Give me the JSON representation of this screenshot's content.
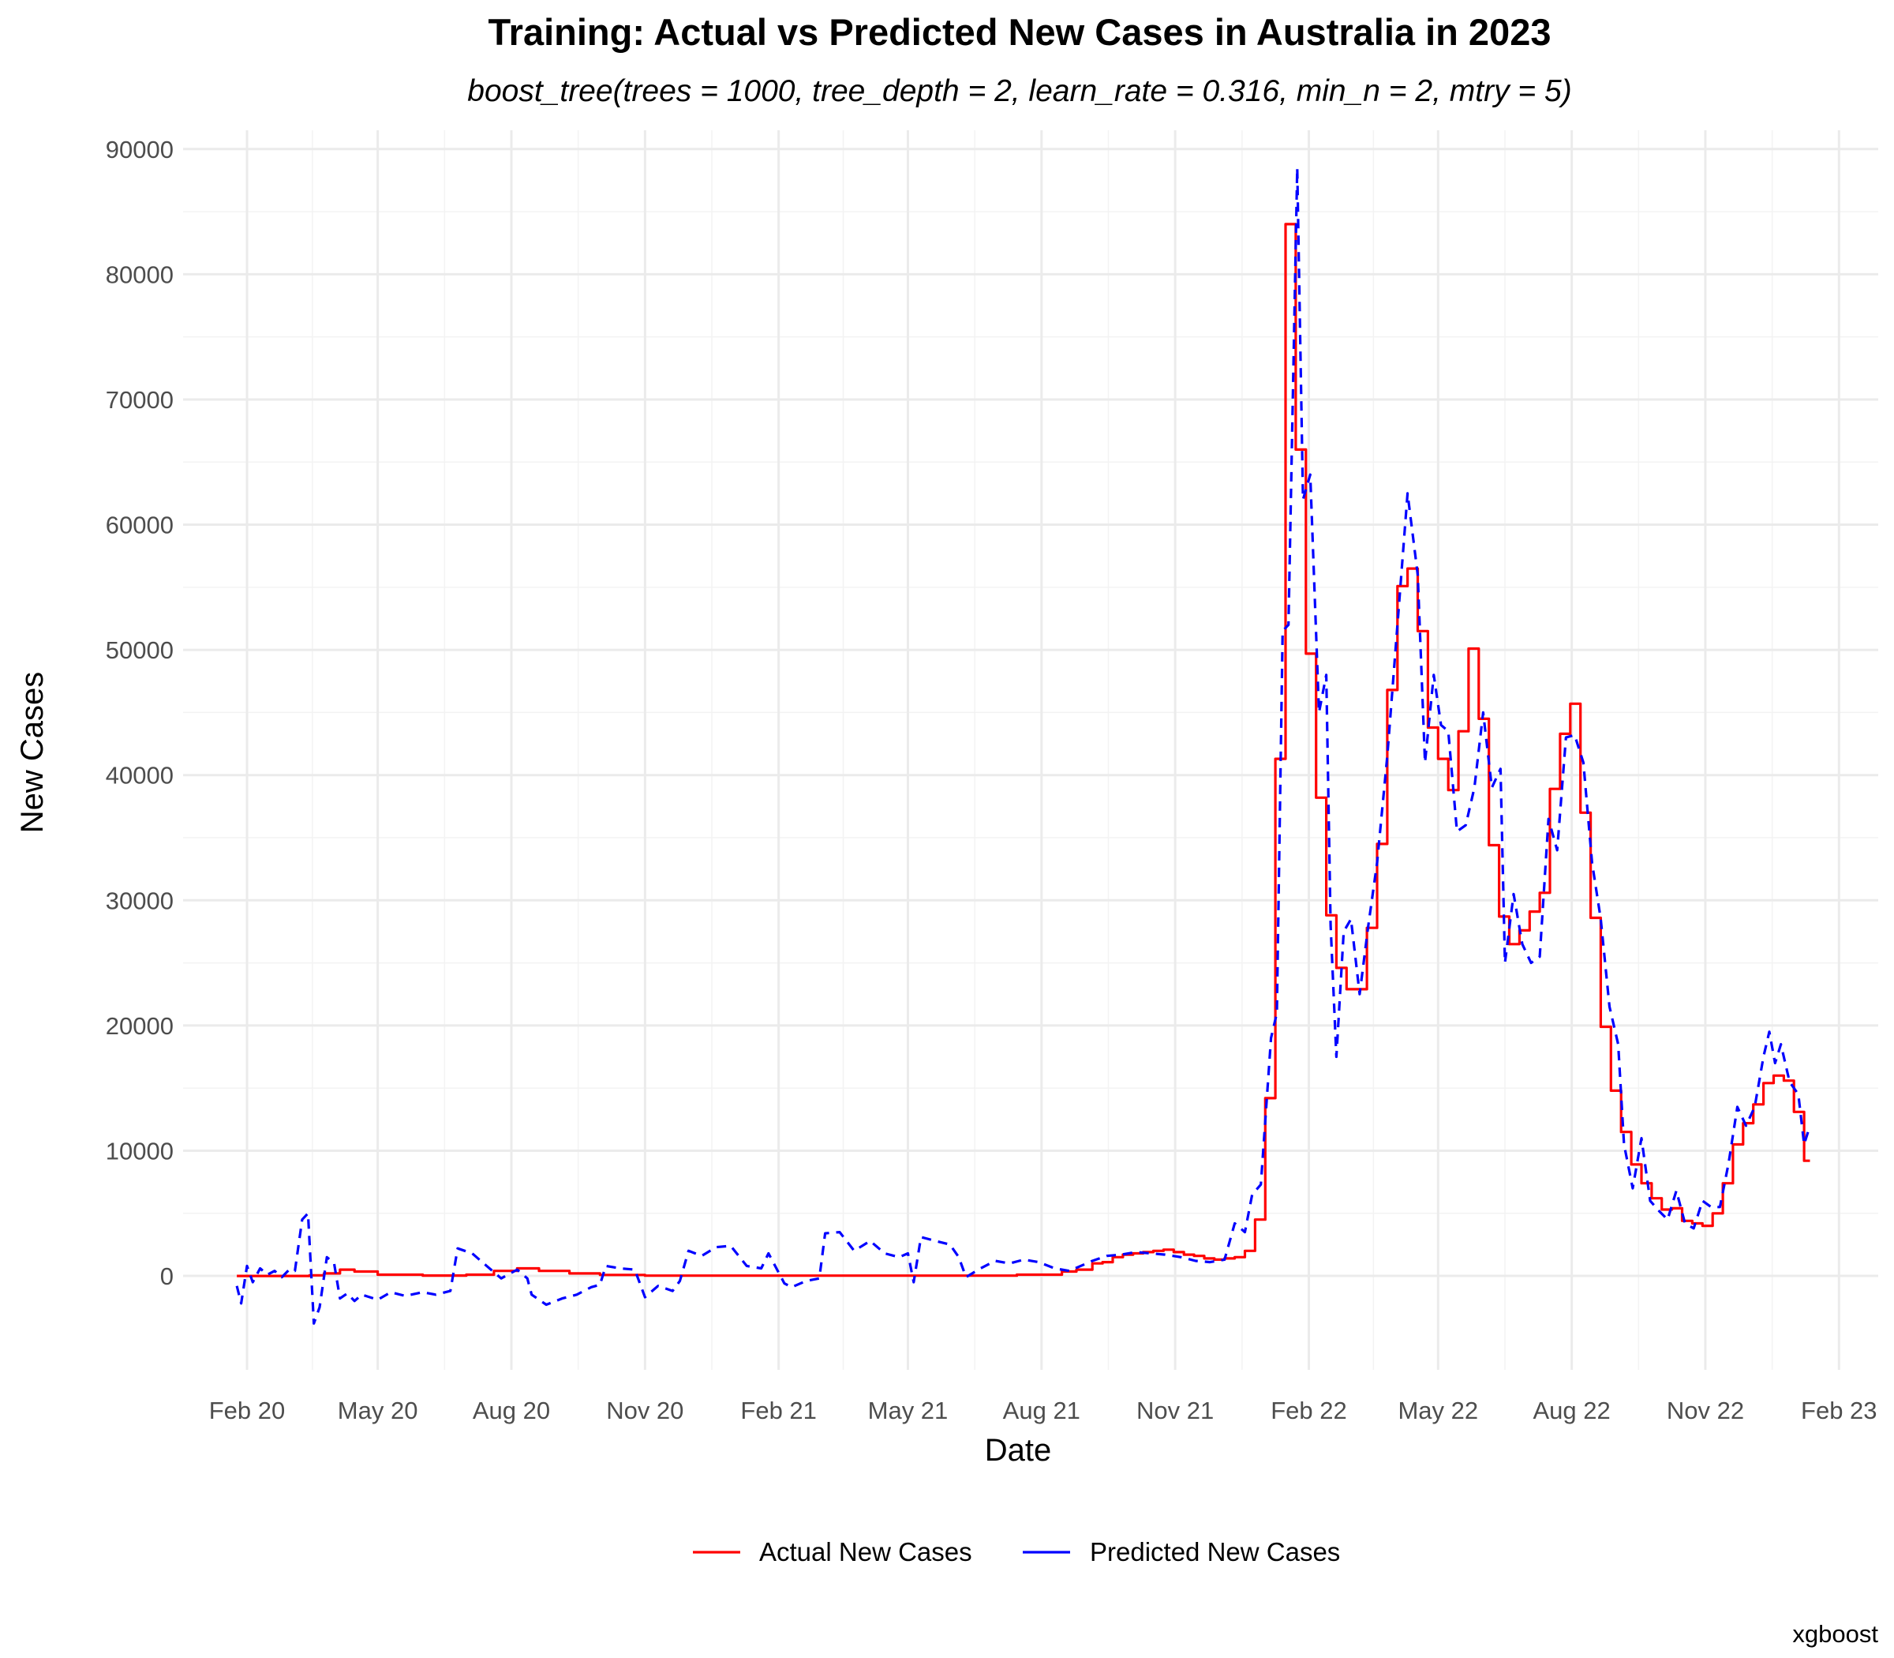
{
  "chart_data": {
    "type": "line",
    "title": "Training: Actual vs Predicted New Cases in Australia in 2023",
    "subtitle": "boost_tree(trees = 1000, tree_depth = 2, learn_rate = 0.316, min_n = 2, mtry = 5)",
    "xlabel": "Date",
    "ylabel": "New Cases",
    "caption": "xgboost",
    "x_ticks": [
      {
        "date": "2020-02-01",
        "label": "Feb 20"
      },
      {
        "date": "2020-05-01",
        "label": "May 20"
      },
      {
        "date": "2020-08-01",
        "label": "Aug 20"
      },
      {
        "date": "2020-11-01",
        "label": "Nov 20"
      },
      {
        "date": "2021-02-01",
        "label": "Feb 21"
      },
      {
        "date": "2021-05-01",
        "label": "May 21"
      },
      {
        "date": "2021-08-01",
        "label": "Aug 21"
      },
      {
        "date": "2021-11-01",
        "label": "Nov 21"
      },
      {
        "date": "2022-02-01",
        "label": "Feb 22"
      },
      {
        "date": "2022-05-01",
        "label": "May 22"
      },
      {
        "date": "2022-08-01",
        "label": "Aug 22"
      },
      {
        "date": "2022-11-01",
        "label": "Nov 22"
      },
      {
        "date": "2023-02-01",
        "label": "Feb 23"
      }
    ],
    "y_ticks": [
      0,
      10000,
      20000,
      30000,
      40000,
      50000,
      60000,
      70000,
      80000,
      90000
    ],
    "xlim": [
      "2019-12-19",
      "2023-02-28"
    ],
    "ylim": [
      -7500,
      91500
    ],
    "grid": true,
    "legend_position": "bottom",
    "series": [
      {
        "name": "Actual New Cases",
        "color": "#ff0000",
        "style": "solid",
        "points": [
          [
            "2020-01-25",
            0
          ],
          [
            "2020-02-20",
            0
          ],
          [
            "2020-03-15",
            50
          ],
          [
            "2020-03-25",
            200
          ],
          [
            "2020-04-05",
            500
          ],
          [
            "2020-04-15",
            350
          ],
          [
            "2020-05-01",
            100
          ],
          [
            "2020-06-01",
            30
          ],
          [
            "2020-07-01",
            100
          ],
          [
            "2020-07-20",
            400
          ],
          [
            "2020-08-05",
            600
          ],
          [
            "2020-08-20",
            400
          ],
          [
            "2020-09-10",
            200
          ],
          [
            "2020-10-01",
            80
          ],
          [
            "2020-11-01",
            20
          ],
          [
            "2021-06-01",
            20
          ],
          [
            "2021-07-15",
            100
          ],
          [
            "2021-08-15",
            350
          ],
          [
            "2021-08-25",
            500
          ],
          [
            "2021-09-05",
            1000
          ],
          [
            "2021-09-12",
            1100
          ],
          [
            "2021-09-19",
            1500
          ],
          [
            "2021-09-26",
            1700
          ],
          [
            "2021-10-03",
            1800
          ],
          [
            "2021-10-10",
            1900
          ],
          [
            "2021-10-17",
            2000
          ],
          [
            "2021-10-24",
            2100
          ],
          [
            "2021-10-31",
            1900
          ],
          [
            "2021-11-07",
            1700
          ],
          [
            "2021-11-14",
            1600
          ],
          [
            "2021-11-21",
            1400
          ],
          [
            "2021-11-28",
            1300
          ],
          [
            "2021-12-05",
            1400
          ],
          [
            "2021-12-12",
            1500
          ],
          [
            "2021-12-19",
            2000
          ],
          [
            "2021-12-26",
            4500
          ],
          [
            "2022-01-02",
            14200
          ],
          [
            "2022-01-09",
            41300
          ],
          [
            "2022-01-16",
            84000
          ],
          [
            "2022-01-23",
            66000
          ],
          [
            "2022-01-30",
            49700
          ],
          [
            "2022-02-06",
            38200
          ],
          [
            "2022-02-13",
            28800
          ],
          [
            "2022-02-20",
            24600
          ],
          [
            "2022-02-27",
            22900
          ],
          [
            "2022-03-06",
            22900
          ],
          [
            "2022-03-13",
            27800
          ],
          [
            "2022-03-20",
            34500
          ],
          [
            "2022-03-27",
            46800
          ],
          [
            "2022-04-03",
            55100
          ],
          [
            "2022-04-10",
            56500
          ],
          [
            "2022-04-17",
            51500
          ],
          [
            "2022-04-24",
            43800
          ],
          [
            "2022-05-01",
            41300
          ],
          [
            "2022-05-08",
            38800
          ],
          [
            "2022-05-15",
            43500
          ],
          [
            "2022-05-22",
            50100
          ],
          [
            "2022-05-29",
            44500
          ],
          [
            "2022-06-05",
            34400
          ],
          [
            "2022-06-12",
            28700
          ],
          [
            "2022-06-19",
            26500
          ],
          [
            "2022-06-26",
            27600
          ],
          [
            "2022-07-03",
            29100
          ],
          [
            "2022-07-10",
            30600
          ],
          [
            "2022-07-17",
            38900
          ],
          [
            "2022-07-24",
            43300
          ],
          [
            "2022-07-31",
            45700
          ],
          [
            "2022-08-07",
            37000
          ],
          [
            "2022-08-14",
            28600
          ],
          [
            "2022-08-21",
            19900
          ],
          [
            "2022-08-28",
            14800
          ],
          [
            "2022-09-04",
            11500
          ],
          [
            "2022-09-11",
            8900
          ],
          [
            "2022-09-18",
            7400
          ],
          [
            "2022-09-25",
            6200
          ],
          [
            "2022-10-02",
            5300
          ],
          [
            "2022-10-09",
            5400
          ],
          [
            "2022-10-16",
            4400
          ],
          [
            "2022-10-23",
            4200
          ],
          [
            "2022-10-30",
            4000
          ],
          [
            "2022-11-06",
            5000
          ],
          [
            "2022-11-13",
            7400
          ],
          [
            "2022-11-20",
            10500
          ],
          [
            "2022-11-27",
            12200
          ],
          [
            "2022-12-04",
            13700
          ],
          [
            "2022-12-11",
            15400
          ],
          [
            "2022-12-18",
            16000
          ],
          [
            "2022-12-25",
            15600
          ],
          [
            "2023-01-01",
            13100
          ],
          [
            "2023-01-08",
            9200
          ],
          [
            "2023-01-12",
            9200
          ]
        ]
      },
      {
        "name": "Predicted New Cases",
        "color": "#0000ff",
        "style": "dashed",
        "points": [
          [
            "2020-01-25",
            -800
          ],
          [
            "2020-01-28",
            -2200
          ],
          [
            "2020-02-01",
            800
          ],
          [
            "2020-02-05",
            -500
          ],
          [
            "2020-02-10",
            600
          ],
          [
            "2020-02-15",
            100
          ],
          [
            "2020-02-20",
            400
          ],
          [
            "2020-02-25",
            -100
          ],
          [
            "2020-03-01",
            500
          ],
          [
            "2020-03-05",
            400
          ],
          [
            "2020-03-10",
            4500
          ],
          [
            "2020-03-14",
            5000
          ],
          [
            "2020-03-18",
            -3800
          ],
          [
            "2020-03-22",
            -2500
          ],
          [
            "2020-03-27",
            1500
          ],
          [
            "2020-04-01",
            1000
          ],
          [
            "2020-04-05",
            -1800
          ],
          [
            "2020-04-10",
            -1400
          ],
          [
            "2020-04-15",
            -2000
          ],
          [
            "2020-04-20",
            -1500
          ],
          [
            "2020-05-01",
            -1900
          ],
          [
            "2020-05-10",
            -1300
          ],
          [
            "2020-05-20",
            -1600
          ],
          [
            "2020-06-01",
            -1300
          ],
          [
            "2020-06-10",
            -1500
          ],
          [
            "2020-06-20",
            -1200
          ],
          [
            "2020-06-25",
            2200
          ],
          [
            "2020-07-05",
            1800
          ],
          [
            "2020-07-15",
            800
          ],
          [
            "2020-07-25",
            -200
          ],
          [
            "2020-08-05",
            500
          ],
          [
            "2020-08-12",
            -200
          ],
          [
            "2020-08-15",
            -1500
          ],
          [
            "2020-08-25",
            -2300
          ],
          [
            "2020-09-05",
            -1800
          ],
          [
            "2020-09-15",
            -1500
          ],
          [
            "2020-09-25",
            -900
          ],
          [
            "2020-10-01",
            -700
          ],
          [
            "2020-10-05",
            800
          ],
          [
            "2020-10-15",
            600
          ],
          [
            "2020-10-25",
            500
          ],
          [
            "2020-11-01",
            -1700
          ],
          [
            "2020-11-10",
            -800
          ],
          [
            "2020-11-20",
            -1200
          ],
          [
            "2020-11-25",
            -400
          ],
          [
            "2020-12-01",
            2000
          ],
          [
            "2020-12-10",
            1600
          ],
          [
            "2020-12-20",
            2300
          ],
          [
            "2020-12-30",
            2400
          ],
          [
            "2021-01-10",
            800
          ],
          [
            "2021-01-20",
            600
          ],
          [
            "2021-01-25",
            1800
          ],
          [
            "2021-02-05",
            -600
          ],
          [
            "2021-02-10",
            -900
          ],
          [
            "2021-02-20",
            -400
          ],
          [
            "2021-03-01",
            -200
          ],
          [
            "2021-03-05",
            3400
          ],
          [
            "2021-03-15",
            3500
          ],
          [
            "2021-03-25",
            2000
          ],
          [
            "2021-04-05",
            2800
          ],
          [
            "2021-04-15",
            1800
          ],
          [
            "2021-04-25",
            1500
          ],
          [
            "2021-05-01",
            1800
          ],
          [
            "2021-05-05",
            -500
          ],
          [
            "2021-05-10",
            3100
          ],
          [
            "2021-05-20",
            2800
          ],
          [
            "2021-05-30",
            2500
          ],
          [
            "2021-06-05",
            1500
          ],
          [
            "2021-06-10",
            -100
          ],
          [
            "2021-06-20",
            600
          ],
          [
            "2021-06-30",
            1200
          ],
          [
            "2021-07-10",
            1000
          ],
          [
            "2021-07-20",
            1300
          ],
          [
            "2021-07-30",
            1100
          ],
          [
            "2021-08-10",
            600
          ],
          [
            "2021-08-20",
            400
          ],
          [
            "2021-08-30",
            900
          ],
          [
            "2021-09-05",
            1200
          ],
          [
            "2021-09-15",
            1600
          ],
          [
            "2021-09-25",
            1700
          ],
          [
            "2021-10-05",
            1900
          ],
          [
            "2021-10-15",
            1800
          ],
          [
            "2021-10-25",
            1700
          ],
          [
            "2021-11-05",
            1500
          ],
          [
            "2021-11-15",
            1200
          ],
          [
            "2021-11-25",
            1100
          ],
          [
            "2021-12-05",
            1300
          ],
          [
            "2021-12-12",
            4200
          ],
          [
            "2021-12-19",
            3500
          ],
          [
            "2021-12-24",
            6500
          ],
          [
            "2021-12-30",
            7300
          ],
          [
            "2022-01-06",
            19000
          ],
          [
            "2022-01-10",
            21000
          ],
          [
            "2022-01-14",
            51500
          ],
          [
            "2022-01-18",
            52000
          ],
          [
            "2022-01-24",
            88500
          ],
          [
            "2022-01-28",
            62000
          ],
          [
            "2022-02-02",
            64000
          ],
          [
            "2022-02-08",
            45000
          ],
          [
            "2022-02-13",
            48000
          ],
          [
            "2022-02-16",
            28000
          ],
          [
            "2022-02-20",
            17500
          ],
          [
            "2022-02-25",
            27500
          ],
          [
            "2022-03-02",
            28500
          ],
          [
            "2022-03-08",
            22500
          ],
          [
            "2022-03-14",
            28000
          ],
          [
            "2022-03-20",
            33000
          ],
          [
            "2022-03-27",
            41500
          ],
          [
            "2022-04-03",
            52000
          ],
          [
            "2022-04-10",
            62500
          ],
          [
            "2022-04-17",
            56000
          ],
          [
            "2022-04-22",
            41000
          ],
          [
            "2022-04-28",
            48000
          ],
          [
            "2022-05-03",
            44000
          ],
          [
            "2022-05-08",
            43500
          ],
          [
            "2022-05-14",
            35500
          ],
          [
            "2022-05-20",
            36000
          ],
          [
            "2022-05-26",
            39000
          ],
          [
            "2022-06-01",
            45000
          ],
          [
            "2022-06-07",
            39000
          ],
          [
            "2022-06-13",
            40500
          ],
          [
            "2022-06-16",
            25000
          ],
          [
            "2022-06-22",
            30500
          ],
          [
            "2022-06-28",
            26500
          ],
          [
            "2022-07-04",
            25000
          ],
          [
            "2022-07-10",
            25500
          ],
          [
            "2022-07-16",
            36500
          ],
          [
            "2022-07-22",
            34000
          ],
          [
            "2022-07-28",
            43000
          ],
          [
            "2022-08-03",
            43200
          ],
          [
            "2022-08-09",
            41000
          ],
          [
            "2022-08-15",
            33000
          ],
          [
            "2022-08-21",
            28500
          ],
          [
            "2022-08-27",
            21500
          ],
          [
            "2022-09-02",
            18500
          ],
          [
            "2022-09-06",
            10500
          ],
          [
            "2022-09-12",
            7000
          ],
          [
            "2022-09-18",
            11000
          ],
          [
            "2022-09-24",
            6000
          ],
          [
            "2022-09-30",
            5200
          ],
          [
            "2022-10-06",
            4500
          ],
          [
            "2022-10-12",
            6800
          ],
          [
            "2022-10-18",
            4200
          ],
          [
            "2022-10-24",
            3800
          ],
          [
            "2022-10-30",
            6000
          ],
          [
            "2022-11-05",
            5500
          ],
          [
            "2022-11-11",
            5500
          ],
          [
            "2022-11-17",
            9000
          ],
          [
            "2022-11-23",
            13500
          ],
          [
            "2022-11-29",
            12000
          ],
          [
            "2022-12-05",
            13500
          ],
          [
            "2022-12-11",
            17500
          ],
          [
            "2022-12-15",
            19500
          ],
          [
            "2022-12-19",
            17000
          ],
          [
            "2022-12-23",
            18500
          ],
          [
            "2022-12-29",
            15500
          ],
          [
            "2023-01-04",
            14500
          ],
          [
            "2023-01-08",
            10500
          ],
          [
            "2023-01-12",
            12000
          ]
        ]
      }
    ]
  }
}
